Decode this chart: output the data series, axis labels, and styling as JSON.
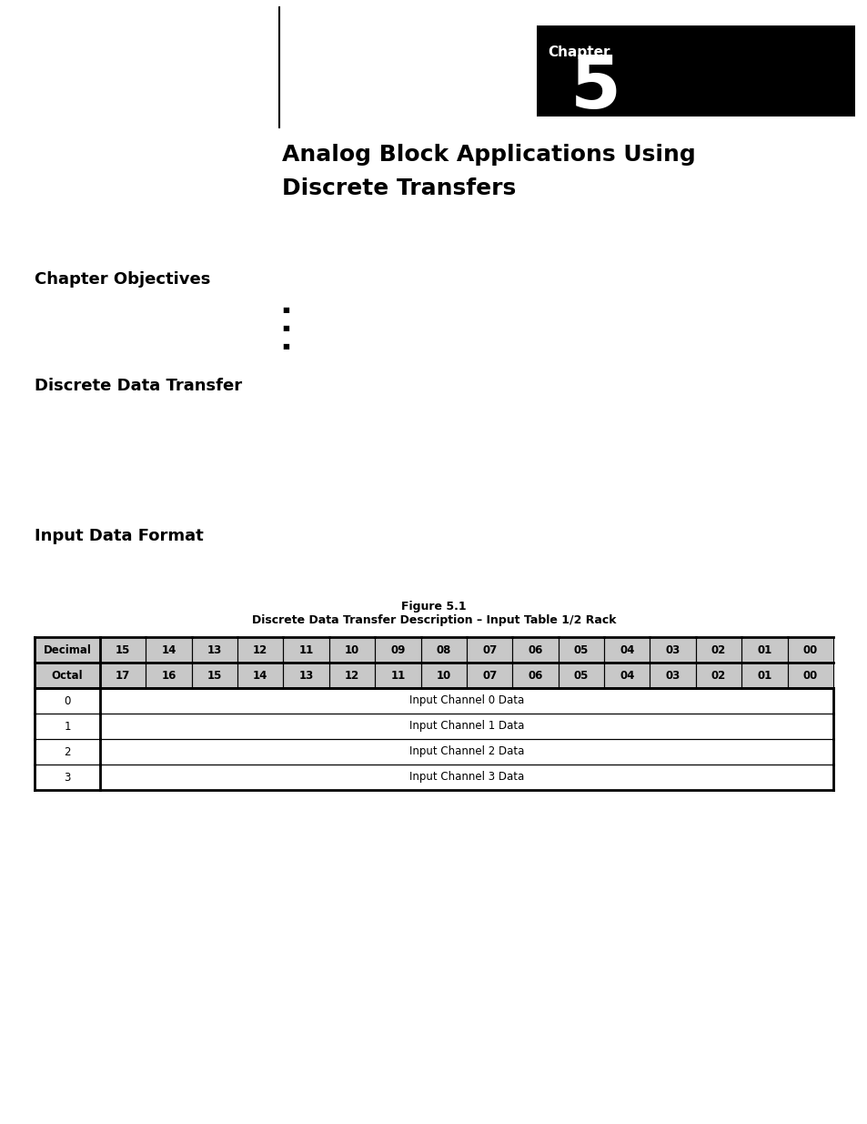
{
  "page_bg": "#ffffff",
  "chapter_label": "Chapter",
  "chapter_number": "5",
  "chapter_box_color": "#000000",
  "chapter_text_color": "#ffffff",
  "title_line1": "Analog Block Applications Using",
  "title_line2": "Discrete Transfers",
  "section1_heading": "Chapter Objectives",
  "bullet_chars": [
    "■",
    "■",
    "■"
  ],
  "section2_heading": "Discrete Data Transfer",
  "section3_heading": "Input Data Format",
  "figure_caption_line1": "Figure 5.1",
  "figure_caption_line2": "Discrete Data Transfer Description – Input Table 1/2 Rack",
  "table_header_row1": [
    "Decimal",
    "15",
    "14",
    "13",
    "12",
    "11",
    "10",
    "09",
    "08",
    "07",
    "06",
    "05",
    "04",
    "03",
    "02",
    "01",
    "00"
  ],
  "table_header_row2": [
    "Octal",
    "17",
    "16",
    "15",
    "14",
    "13",
    "12",
    "11",
    "10",
    "07",
    "06",
    "05",
    "04",
    "03",
    "02",
    "01",
    "00"
  ],
  "table_data_rows": [
    [
      "0",
      "Input Channel 0 Data"
    ],
    [
      "1",
      "Input Channel 1 Data"
    ],
    [
      "2",
      "Input Channel 2 Data"
    ],
    [
      "3",
      "Input Channel 3 Data"
    ]
  ],
  "table_header_bg": "#c8c8c8",
  "table_data_bg": "#ffffff"
}
